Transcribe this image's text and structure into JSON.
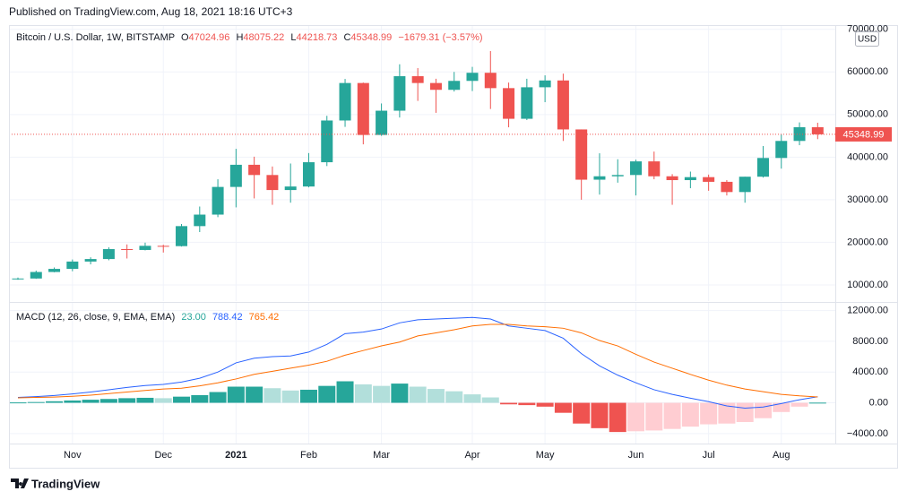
{
  "published": "Published on TradingView.com, Aug 18, 2021 18:16 UTC+3",
  "footer": "TradingView",
  "chart_data": {
    "type": "candlestick",
    "title": "Bitcoin / U.S. Dollar, 1W, BITSTAMP",
    "ohlc_labels": [
      "O",
      "H",
      "L",
      "C"
    ],
    "change": "−1679.31 (−3.57%)",
    "currency": "USD",
    "up_color": "#26a69a",
    "down_color": "#ef5350",
    "categories": [
      null,
      null,
      null,
      "Nov",
      null,
      null,
      null,
      null,
      "Dec",
      null,
      null,
      null,
      "2021",
      null,
      null,
      null,
      "Feb",
      null,
      null,
      null,
      "Mar",
      null,
      null,
      null,
      null,
      "Apr",
      null,
      null,
      null,
      "May",
      null,
      null,
      null,
      null,
      "Jun",
      null,
      null,
      null,
      "Jul",
      null,
      null,
      null,
      "Aug",
      null,
      null
    ],
    "open": [
      11375,
      11500,
      13030,
      13760,
      15480,
      16070,
      18400,
      18200,
      19170,
      19100,
      23800,
      26500,
      33000,
      38200,
      35800,
      32270,
      33100,
      38800,
      48600,
      57400,
      45200,
      50900,
      59000,
      57400,
      55800,
      57900,
      59800,
      56200,
      49000,
      56400,
      58000,
      46500,
      34700,
      35500,
      35800,
      39000,
      35500,
      34600,
      35300,
      34200,
      31800,
      35400,
      39800,
      43800,
      47024.96
    ],
    "high": [
      11720,
      13350,
      14090,
      15960,
      16480,
      18820,
      19500,
      19920,
      19420,
      24300,
      28400,
      34800,
      41950,
      40100,
      37800,
      38500,
      40950,
      49700,
      58350,
      57500,
      52600,
      61800,
      60900,
      58400,
      60000,
      61200,
      64900,
      57500,
      58400,
      59200,
      59600,
      46500,
      40900,
      39500,
      39400,
      41300,
      36000,
      36600,
      35900,
      34600,
      35400,
      42600,
      45300,
      48150,
      48075.22
    ],
    "low": [
      11200,
      11420,
      12960,
      13200,
      14820,
      15780,
      16200,
      18100,
      17600,
      19000,
      22400,
      25900,
      28200,
      30300,
      28800,
      29300,
      32900,
      37900,
      47100,
      43000,
      45000,
      49300,
      53200,
      50400,
      55400,
      55500,
      51300,
      47000,
      48700,
      52900,
      43800,
      30000,
      31200,
      34000,
      31000,
      34800,
      28800,
      32700,
      32100,
      31000,
      29300,
      35200,
      37300,
      42800,
      44218.73
    ],
    "close": [
      11500,
      13030,
      13760,
      15480,
      16070,
      18400,
      18200,
      19170,
      19100,
      23800,
      26500,
      33000,
      38200,
      35800,
      32270,
      33100,
      38800,
      48600,
      57400,
      45200,
      50900,
      59000,
      57400,
      55800,
      57900,
      59800,
      56200,
      49000,
      56400,
      58000,
      46500,
      34700,
      35500,
      35800,
      39000,
      35500,
      34600,
      35300,
      34200,
      31800,
      35400,
      39800,
      43800,
      47028.3,
      45348.99
    ],
    "ylim": [
      6200,
      71000
    ],
    "yticks": [
      {
        "value": 10000,
        "label": "10000.00"
      },
      {
        "value": 20000,
        "label": "20000.00"
      },
      {
        "value": 30000,
        "label": "30000.00"
      },
      {
        "value": 40000,
        "label": "40000.00"
      },
      {
        "value": 50000,
        "label": "50000.00"
      },
      {
        "value": 60000,
        "label": "60000.00"
      },
      {
        "value": 70000,
        "label": "70000.00"
      }
    ],
    "grid": true,
    "macd": {
      "type": "macd",
      "title": "MACD (12, 26, close, 9, EMA, EMA)",
      "series": [
        {
          "colors": [
            "#26a69a",
            "#b2dfdb",
            "#ffcdd2",
            "#ef5350"
          ],
          "legend_label": "23.00",
          "values": [
            50,
            100,
            200,
            300,
            400,
            500,
            600,
            650,
            600,
            800,
            1000,
            1400,
            2100,
            2100,
            1900,
            1600,
            1700,
            2200,
            2800,
            2400,
            2200,
            2500,
            2100,
            1800,
            1500,
            1100,
            700,
            -200,
            -300,
            -500,
            -1300,
            -2700,
            -3300,
            -3800,
            -3700,
            -3600,
            -3400,
            -3100,
            -2800,
            -2700,
            -2500,
            -2000,
            -1200,
            -500,
            23
          ]
        },
        {
          "color": "#2962ff",
          "values": [
            700,
            800,
            950,
            1150,
            1400,
            1700,
            2000,
            2250,
            2400,
            2700,
            3200,
            4000,
            5200,
            5800,
            6000,
            6100,
            6600,
            7600,
            9000,
            9200,
            9600,
            10400,
            10800,
            10900,
            11000,
            11100,
            10900,
            10000,
            9700,
            9400,
            8400,
            6400,
            4800,
            3600,
            2600,
            1700,
            1100,
            600,
            150,
            -400,
            -700,
            -550,
            -100,
            400,
            788.42
          ]
        },
        {
          "color": "#ff6d00",
          "values": [
            650,
            700,
            750,
            850,
            1000,
            1200,
            1400,
            1600,
            1800,
            1900,
            2200,
            2600,
            3100,
            3700,
            4100,
            4500,
            4900,
            5400,
            6200,
            6800,
            7400,
            7900,
            8700,
            9100,
            9500,
            10000,
            10200,
            10200,
            10000,
            9900,
            9700,
            9100,
            8100,
            7400,
            6300,
            5300,
            4500,
            3700,
            2950,
            2300,
            1800,
            1450,
            1100,
            900,
            765.42
          ]
        }
      ],
      "ylim": [
        -5300,
        13000
      ],
      "yticks": [
        {
          "value": -4000,
          "label": "−4000.00"
        },
        {
          "value": 0,
          "label": "0.00"
        },
        {
          "value": 4000,
          "label": "4000.00"
        },
        {
          "value": 8000,
          "label": "8000.00"
        },
        {
          "value": 12000,
          "label": "12000.00"
        }
      ]
    }
  }
}
